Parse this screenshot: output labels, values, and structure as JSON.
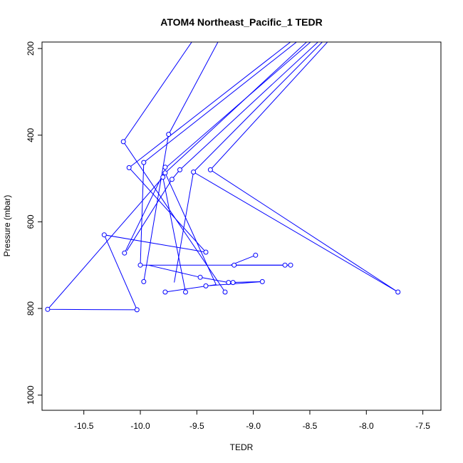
{
  "chart_data": {
    "type": "line",
    "title": "ATOM4 Northeast_Pacific_1 TEDR",
    "xlabel": "TEDR",
    "ylabel": "Pressure (mbar)",
    "xlim": [
      -10.87,
      -7.34
    ],
    "ylim": [
      1035,
      185
    ],
    "y_reversed": true,
    "x_ticks": [
      -10.5,
      -10.0,
      -9.5,
      -9.0,
      -8.5,
      -8.0,
      -7.5
    ],
    "x_tick_labels": [
      "-10.5",
      "-10.0",
      "-9.5",
      "-9.0",
      "-8.5",
      "-8.0",
      "-7.5"
    ],
    "y_ticks": [
      200,
      400,
      600,
      800,
      1000
    ],
    "y_tick_labels": [
      "200",
      "400",
      "600",
      "800",
      "1000"
    ],
    "grid": false,
    "legend": "none",
    "color": "#0000ff",
    "series": [
      {
        "segments": [
          [
            [
              -9.4,
              130
            ],
            [
              -10.15,
              415
            ],
            [
              -9.25,
              762
            ]
          ],
          [
            [
              -9.2,
              130
            ],
            [
              -9.75,
              398
            ],
            [
              -9.97,
              738
            ]
          ],
          [
            [
              -8.4,
              130
            ],
            [
              -10.1,
              475
            ],
            [
              -9.42,
              670
            ],
            [
              -10.32,
              630
            ],
            [
              -10.03,
              803
            ],
            [
              -10.82,
              802
            ],
            [
              -9.8,
              497
            ],
            [
              -9.6,
              762
            ]
          ],
          [
            [
              -8.35,
              130
            ],
            [
              -9.97,
              463
            ],
            [
              -10.0,
              700
            ],
            [
              -8.72,
              700
            ],
            [
              -9.93,
              700
            ],
            [
              -9.47,
              728
            ],
            [
              -9.22,
              740
            ],
            [
              -8.92,
              738
            ],
            [
              -9.42,
              748
            ]
          ],
          [
            [
              -8.3,
              130
            ],
            [
              -9.78,
              487
            ],
            [
              -9.33,
              745
            ],
            [
              -9.78,
              762
            ]
          ],
          [
            [
              -8.25,
              130
            ],
            [
              -9.77,
              474
            ],
            [
              -10.14,
              672
            ]
          ],
          [
            [
              -8.2,
              130
            ],
            [
              -9.65,
              480
            ],
            [
              -9.72,
              502
            ],
            [
              -10.12,
              667
            ]
          ],
          [
            [
              -8.18,
              130
            ],
            [
              -9.53,
              485
            ],
            [
              -9.7,
              740
            ]
          ],
          [
            [
              -8.15,
              130
            ],
            [
              -9.38,
              480
            ],
            [
              -7.72,
              762
            ],
            [
              -9.53,
              485
            ]
          ],
          [
            [
              -9.2,
              700
            ],
            [
              -8.98,
              677
            ]
          ],
          [
            [
              -9.17,
              700
            ],
            [
              -8.67,
              700
            ]
          ],
          [
            [
              -9.2,
              740
            ],
            [
              -9.15,
              740
            ]
          ]
        ],
        "points": [
          [
            -10.15,
            415
          ],
          [
            -9.75,
            398
          ],
          [
            -10.1,
            475
          ],
          [
            -9.97,
            463
          ],
          [
            -9.78,
            474
          ],
          [
            -9.78,
            487
          ],
          [
            -9.65,
            480
          ],
          [
            -9.53,
            485
          ],
          [
            -9.38,
            480
          ],
          [
            -9.8,
            497
          ],
          [
            -9.72,
            502
          ],
          [
            -10.32,
            630
          ],
          [
            -9.42,
            670
          ],
          [
            -10.14,
            672
          ],
          [
            -10.0,
            700
          ],
          [
            -9.17,
            700
          ],
          [
            -8.98,
            677
          ],
          [
            -8.72,
            700
          ],
          [
            -8.67,
            700
          ],
          [
            -9.47,
            728
          ],
          [
            -9.97,
            738
          ],
          [
            -9.22,
            740
          ],
          [
            -9.18,
            740
          ],
          [
            -8.92,
            738
          ],
          [
            -9.42,
            748
          ],
          [
            -9.78,
            762
          ],
          [
            -9.6,
            762
          ],
          [
            -9.25,
            762
          ],
          [
            -7.72,
            762
          ],
          [
            -10.03,
            803
          ],
          [
            -10.82,
            802
          ]
        ]
      }
    ]
  }
}
